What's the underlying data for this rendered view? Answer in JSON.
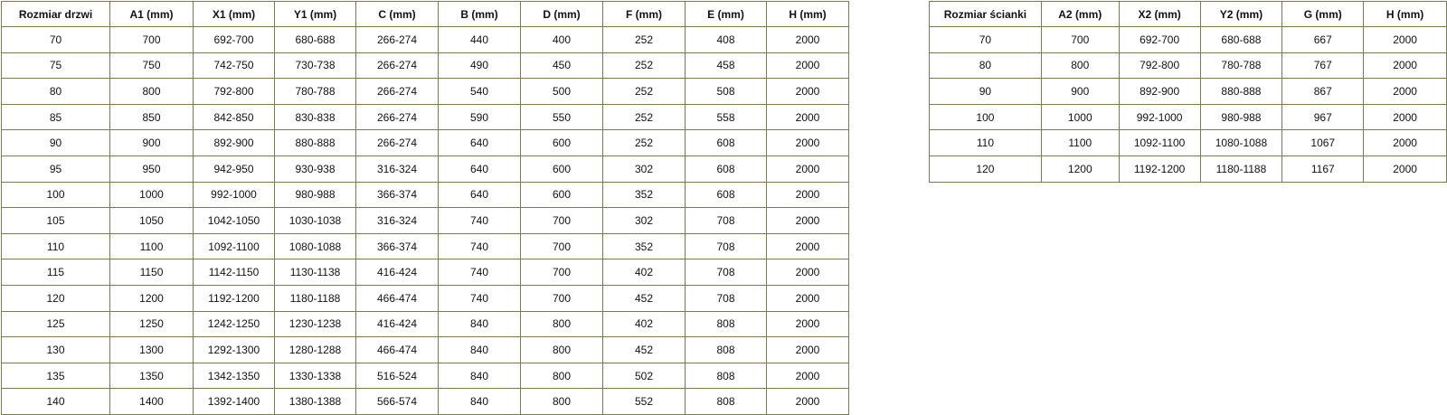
{
  "door_table": {
    "headers": [
      "Rozmiar drzwi",
      "A1 (mm)",
      "X1 (mm)",
      "Y1 (mm)",
      "C (mm)",
      "B (mm)",
      "D (mm)",
      "F (mm)",
      "E (mm)",
      "H (mm)"
    ],
    "rows": [
      [
        70,
        700,
        "692-700",
        "680-688",
        "266-274",
        440,
        400,
        252,
        408,
        2000
      ],
      [
        75,
        750,
        "742-750",
        "730-738",
        "266-274",
        490,
        450,
        252,
        458,
        2000
      ],
      [
        80,
        800,
        "792-800",
        "780-788",
        "266-274",
        540,
        500,
        252,
        508,
        2000
      ],
      [
        85,
        850,
        "842-850",
        "830-838",
        "266-274",
        590,
        550,
        252,
        558,
        2000
      ],
      [
        90,
        900,
        "892-900",
        "880-888",
        "266-274",
        640,
        600,
        252,
        608,
        2000
      ],
      [
        95,
        950,
        "942-950",
        "930-938",
        "316-324",
        640,
        600,
        302,
        608,
        2000
      ],
      [
        100,
        1000,
        "992-1000",
        "980-988",
        "366-374",
        640,
        600,
        352,
        608,
        2000
      ],
      [
        105,
        1050,
        "1042-1050",
        "1030-1038",
        "316-324",
        740,
        700,
        302,
        708,
        2000
      ],
      [
        110,
        1100,
        "1092-1100",
        "1080-1088",
        "366-374",
        740,
        700,
        352,
        708,
        2000
      ],
      [
        115,
        1150,
        "1142-1150",
        "1130-1138",
        "416-424",
        740,
        700,
        402,
        708,
        2000
      ],
      [
        120,
        1200,
        "1192-1200",
        "1180-1188",
        "466-474",
        740,
        700,
        452,
        708,
        2000
      ],
      [
        125,
        1250,
        "1242-1250",
        "1230-1238",
        "416-424",
        840,
        800,
        402,
        808,
        2000
      ],
      [
        130,
        1300,
        "1292-1300",
        "1280-1288",
        "466-474",
        840,
        800,
        452,
        808,
        2000
      ],
      [
        135,
        1350,
        "1342-1350",
        "1330-1338",
        "516-524",
        840,
        800,
        502,
        808,
        2000
      ],
      [
        140,
        1400,
        "1392-1400",
        "1380-1388",
        "566-574",
        840,
        800,
        552,
        808,
        2000
      ]
    ]
  },
  "wall_table": {
    "headers": [
      "Rozmiar ścianki",
      "A2 (mm)",
      "X2 (mm)",
      "Y2 (mm)",
      "G (mm)",
      "H (mm)"
    ],
    "rows": [
      [
        70,
        700,
        "692-700",
        "680-688",
        667,
        2000
      ],
      [
        80,
        800,
        "792-800",
        "780-788",
        767,
        2000
      ],
      [
        90,
        900,
        "892-900",
        "880-888",
        867,
        2000
      ],
      [
        100,
        1000,
        "992-1000",
        "980-988",
        967,
        2000
      ],
      [
        110,
        1100,
        "1092-1100",
        "1080-1088",
        1067,
        2000
      ],
      [
        120,
        1200,
        "1192-1200",
        "1180-1188",
        1167,
        2000
      ]
    ]
  }
}
